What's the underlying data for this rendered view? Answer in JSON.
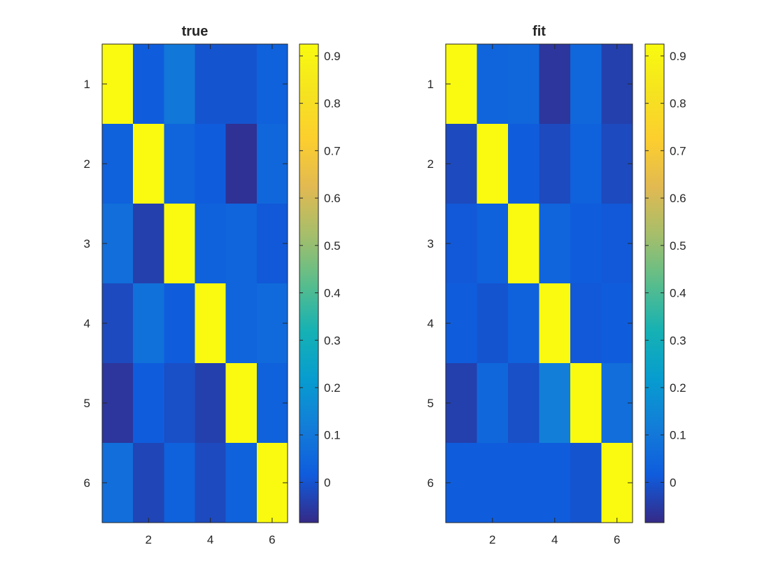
{
  "chart_data": [
    {
      "type": "heatmap",
      "title": "true",
      "xlabel": "",
      "ylabel": "",
      "x_ticks": [
        2,
        4,
        6
      ],
      "y_ticks": [
        1,
        2,
        3,
        4,
        5,
        6
      ],
      "xlim": [
        0.5,
        6.5
      ],
      "ylim": [
        0.5,
        6.5
      ],
      "y_direction": "reverse",
      "matrix": [
        [
          0.92,
          0.02,
          0.1,
          0.0,
          0.0,
          0.03
        ],
        [
          0.03,
          0.92,
          0.04,
          0.02,
          -0.07,
          0.05
        ],
        [
          0.07,
          -0.04,
          0.92,
          0.03,
          0.04,
          0.01
        ],
        [
          -0.02,
          0.08,
          0.02,
          0.92,
          0.04,
          0.06
        ],
        [
          -0.06,
          0.02,
          -0.01,
          -0.04,
          0.92,
          0.03
        ],
        [
          0.07,
          -0.03,
          0.03,
          -0.02,
          0.03,
          0.92
        ]
      ],
      "colorbar": {
        "ticks": [
          0,
          0.1,
          0.2,
          0.3,
          0.4,
          0.5,
          0.6,
          0.7,
          0.8,
          0.9
        ],
        "tick_labels": [
          "0",
          "0.1",
          "0.2",
          "0.3",
          "0.4",
          "0.5",
          "0.6",
          "0.7",
          "0.8",
          "0.9"
        ],
        "clim": [
          -0.085,
          0.925
        ],
        "location": "right"
      },
      "grid": false
    },
    {
      "type": "heatmap",
      "title": "fit",
      "xlabel": "",
      "ylabel": "",
      "x_ticks": [
        2,
        4,
        6
      ],
      "y_ticks": [
        1,
        2,
        3,
        4,
        5,
        6
      ],
      "xlim": [
        0.5,
        6.5
      ],
      "ylim": [
        0.5,
        6.5
      ],
      "y_direction": "reverse",
      "matrix": [
        [
          0.92,
          0.04,
          0.05,
          -0.06,
          0.05,
          -0.04
        ],
        [
          -0.02,
          0.92,
          0.02,
          -0.02,
          0.03,
          -0.02
        ],
        [
          0.01,
          0.03,
          0.92,
          0.04,
          0.02,
          0.01
        ],
        [
          0.02,
          0.0,
          0.03,
          0.92,
          0.01,
          0.02
        ],
        [
          -0.04,
          0.05,
          -0.01,
          0.12,
          0.92,
          0.07
        ],
        [
          0.02,
          0.02,
          0.02,
          0.02,
          0.0,
          0.92
        ]
      ],
      "colorbar": {
        "ticks": [
          0,
          0.1,
          0.2,
          0.3,
          0.4,
          0.5,
          0.6,
          0.7,
          0.8,
          0.9
        ],
        "tick_labels": [
          "0",
          "0.1",
          "0.2",
          "0.3",
          "0.4",
          "0.5",
          "0.6",
          "0.7",
          "0.8",
          "0.9"
        ],
        "clim": [
          -0.085,
          0.925
        ],
        "location": "right"
      },
      "grid": false
    }
  ],
  "colormap": "parula",
  "colors": {
    "axis": "#262626",
    "background": "#ffffff"
  }
}
